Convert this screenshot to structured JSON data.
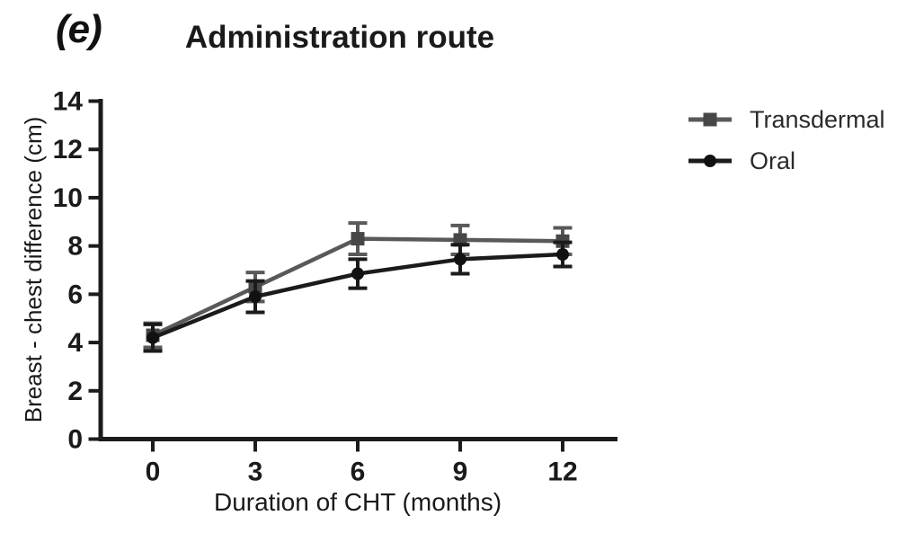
{
  "figure": {
    "panel_label": "(e)",
    "title": "Administration route"
  },
  "chart_data": {
    "type": "line",
    "title": "Administration route",
    "panel_label": "(e)",
    "xlabel": "Duration of CHT (months)",
    "ylabel": "Breast - chest difference (cm)",
    "x": [
      0,
      3,
      6,
      9,
      12
    ],
    "xticks": [
      "0",
      "3",
      "6",
      "9",
      "12"
    ],
    "yticks": [
      "0",
      "2",
      "4",
      "6",
      "8",
      "10",
      "12",
      "14"
    ],
    "xlim": [
      -1.6,
      13.6
    ],
    "ylim": [
      0,
      14
    ],
    "grid": false,
    "legend_position": "right",
    "error_bars": true,
    "series": [
      {
        "name": "Transdermal",
        "marker": "square",
        "color": "#595959",
        "marker_color": "#474747",
        "values": [
          4.3,
          6.3,
          8.3,
          8.25,
          8.2
        ],
        "errors": [
          0.5,
          0.6,
          0.65,
          0.6,
          0.55
        ]
      },
      {
        "name": "Oral",
        "marker": "circle",
        "color": "#1b1b1b",
        "marker_color": "#111111",
        "values": [
          4.2,
          5.9,
          6.85,
          7.45,
          7.65
        ],
        "errors": [
          0.55,
          0.65,
          0.6,
          0.6,
          0.5
        ]
      }
    ],
    "axis_color": "#1c1c1c",
    "tick_label_color": "#1a1a1a"
  }
}
